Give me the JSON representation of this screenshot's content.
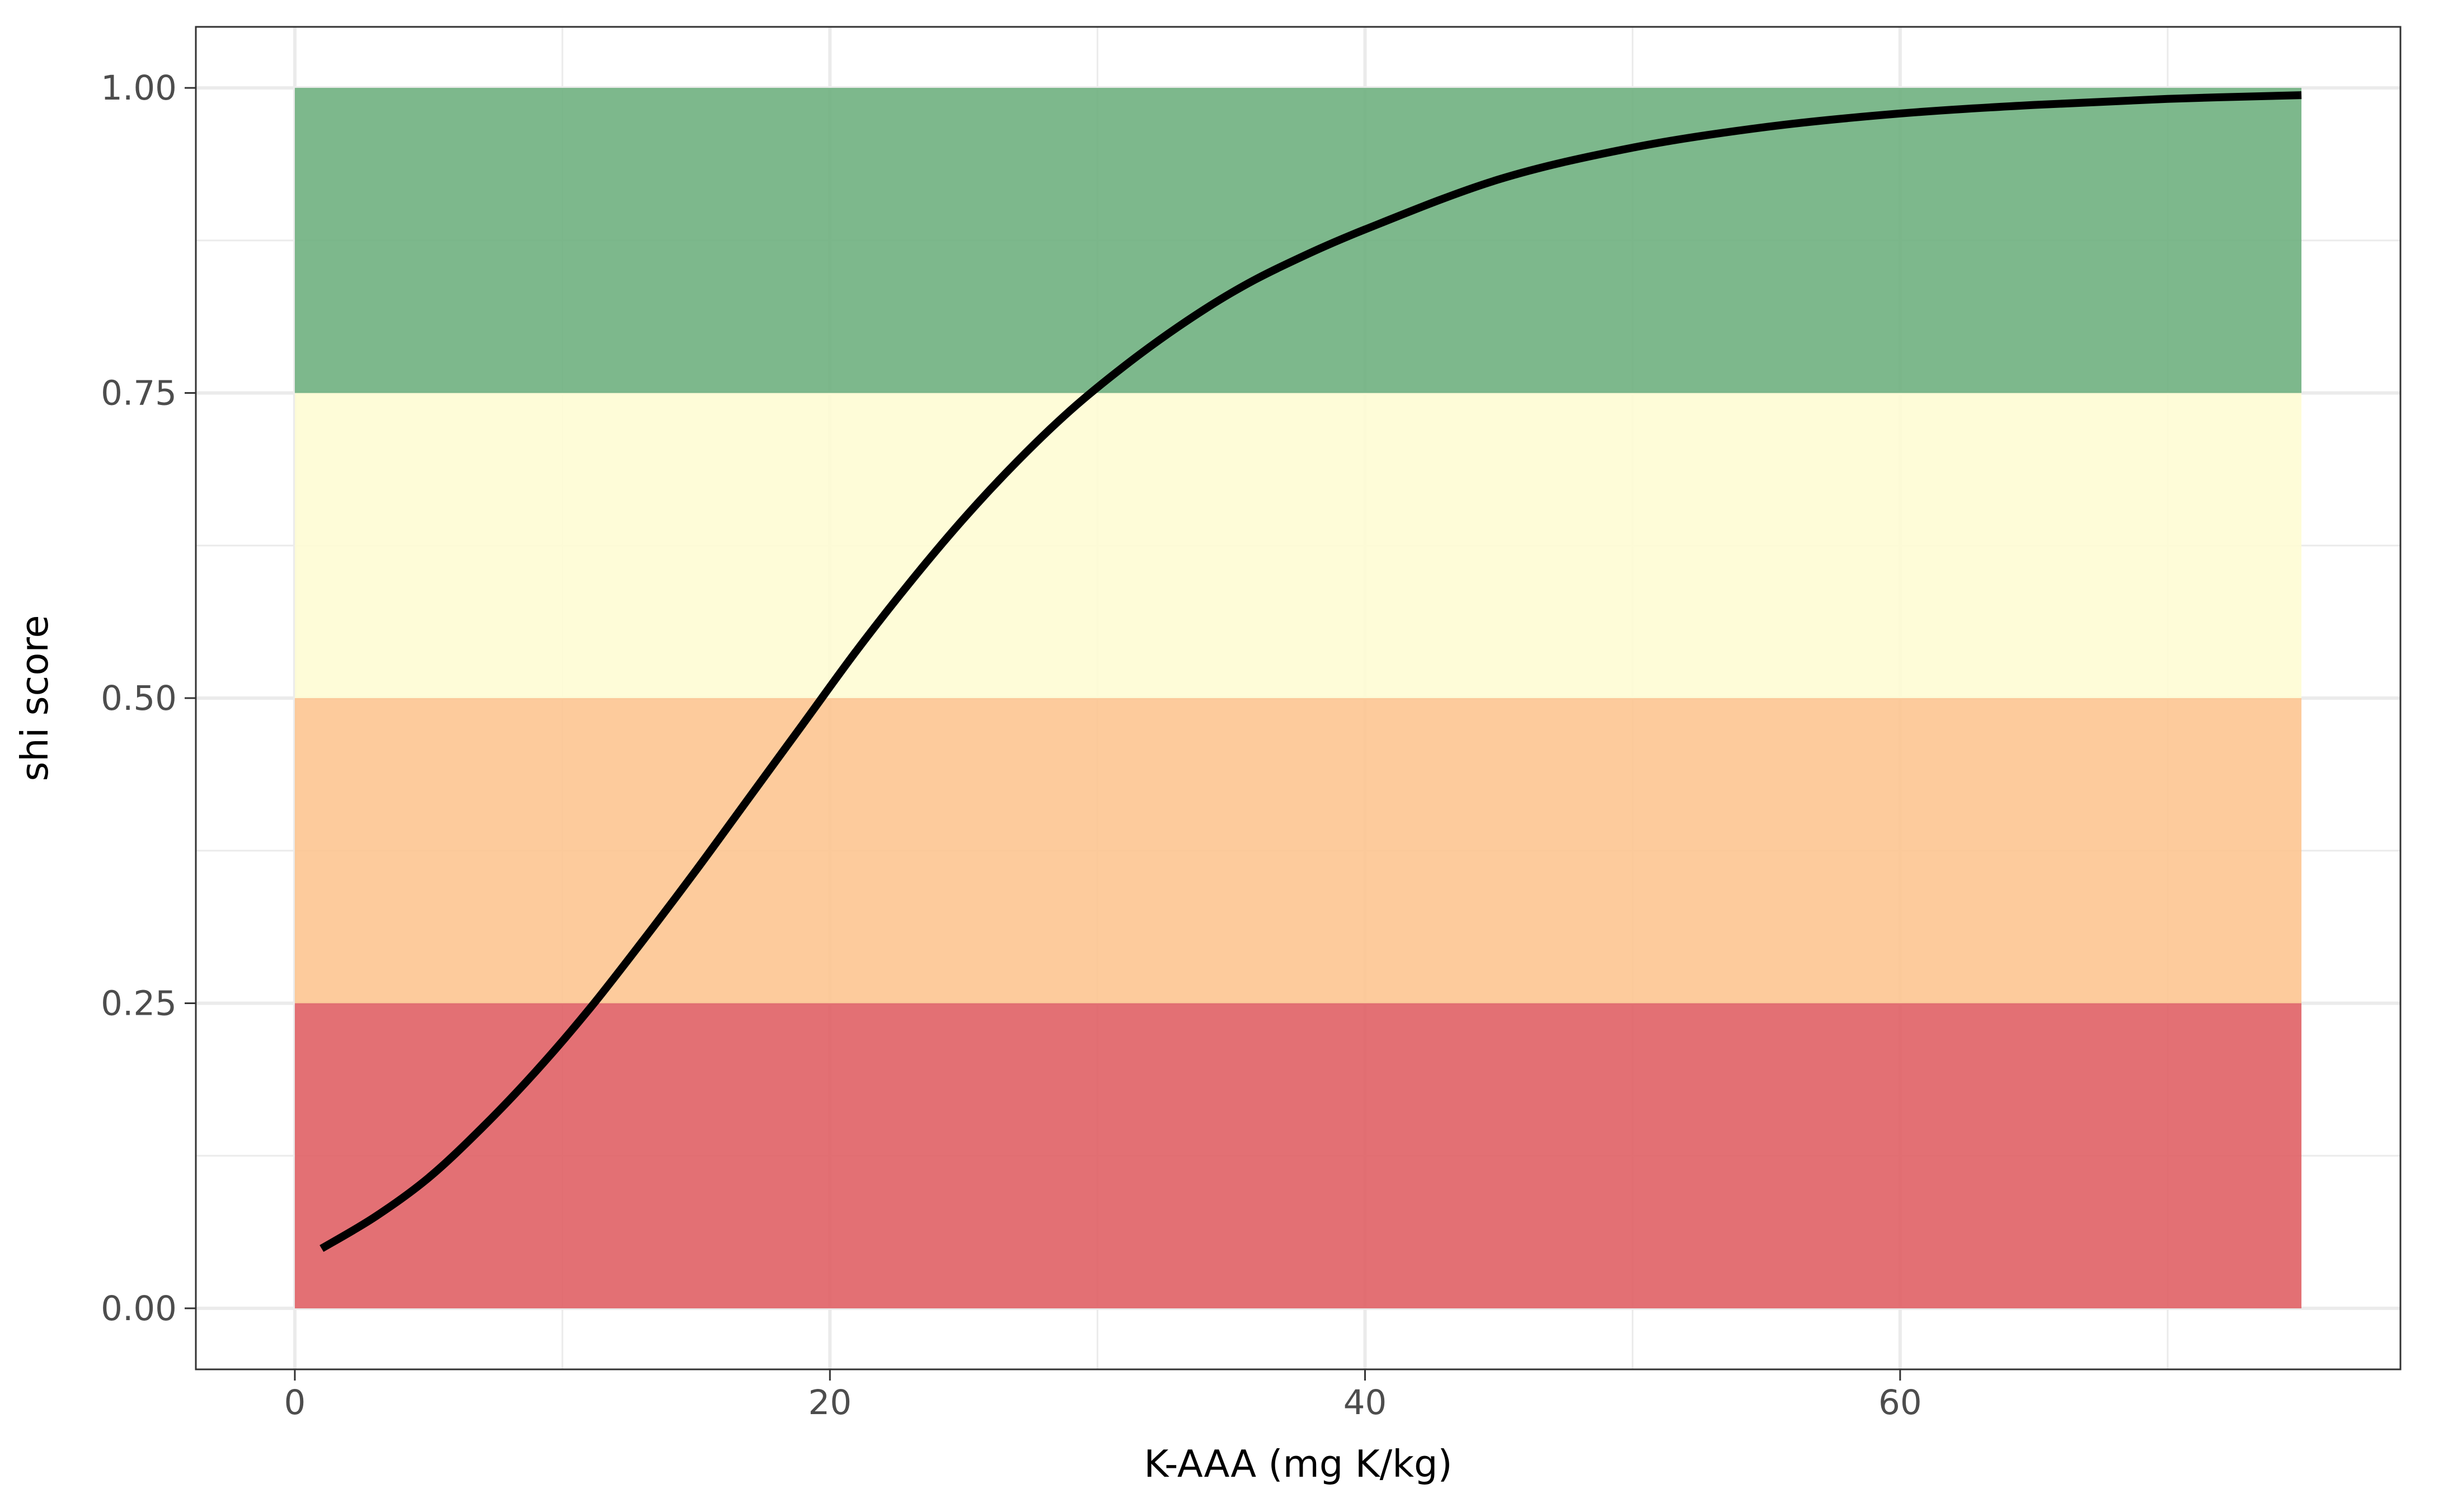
{
  "chart_data": {
    "type": "line",
    "title": "",
    "xlabel": "K-AAA (mg K/kg)",
    "ylabel": "shi score",
    "xlim": [
      -3.7,
      78.7
    ],
    "ylim": [
      -0.05,
      1.05
    ],
    "x_ticks": [
      0,
      20,
      40,
      60
    ],
    "x_tick_labels": [
      "0",
      "20",
      "40",
      "60"
    ],
    "x_minor_ticks": [
      10,
      30,
      50,
      70
    ],
    "y_ticks": [
      0,
      0.25,
      0.5,
      0.75,
      1.0
    ],
    "y_tick_labels": [
      "0.00",
      "0.25",
      "0.50",
      "0.75",
      "1.00"
    ],
    "y_minor_ticks": [
      0.125,
      0.375,
      0.625,
      0.875
    ],
    "grid": true,
    "legend": "none",
    "bands": [
      {
        "x0": 0,
        "x1": 75,
        "y0": 0.0,
        "y1": 0.25,
        "color": "#e06065"
      },
      {
        "x0": 0,
        "x1": 75,
        "y0": 0.25,
        "y1": 0.5,
        "color": "#fdc591"
      },
      {
        "x0": 0,
        "x1": 75,
        "y0": 0.5,
        "y1": 0.75,
        "color": "#fefcd4"
      },
      {
        "x0": 0,
        "x1": 75,
        "y0": 0.75,
        "y1": 1.0,
        "color": "#6fb080"
      }
    ],
    "series": [
      {
        "color": "#000000",
        "x": [
          1,
          3,
          5,
          7,
          9,
          11,
          13,
          15,
          17,
          19,
          21,
          23,
          25,
          27,
          29,
          31,
          33,
          35,
          37,
          40,
          45,
          50,
          55,
          60,
          65,
          70,
          75
        ],
        "y": [
          0.049,
          0.075,
          0.107,
          0.148,
          0.194,
          0.245,
          0.301,
          0.359,
          0.419,
          0.479,
          0.539,
          0.595,
          0.647,
          0.694,
          0.736,
          0.772,
          0.804,
          0.832,
          0.855,
          0.884,
          0.925,
          0.951,
          0.968,
          0.979,
          0.986,
          0.991,
          0.994
        ]
      }
    ]
  }
}
